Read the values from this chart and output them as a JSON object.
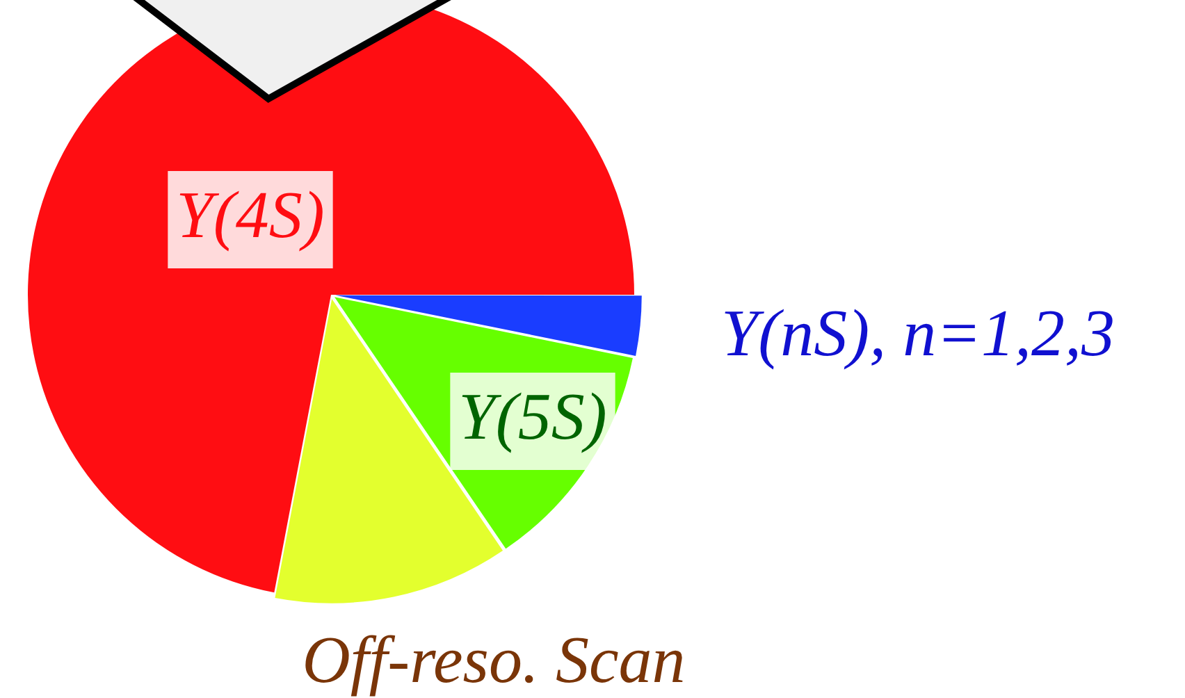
{
  "chart_data": {
    "type": "pie",
    "categories": [
      "Y(nS), n=1,2,3",
      "Y(5S)",
      "Off-reso. Scan",
      "Y(4S)"
    ],
    "values": [
      3.2,
      12.3,
      12.5,
      72.0
    ],
    "colors": [
      "#1a3dff",
      "#66ff00",
      "#e3ff2e",
      "#ff0d12"
    ],
    "legend": false
  }
}
